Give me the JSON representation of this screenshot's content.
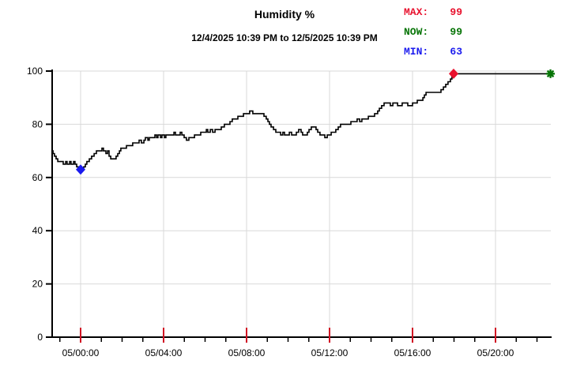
{
  "title": "Humidity %",
  "subtitle": "12/4/2025 10:39 PM to 12/5/2025 10:39 PM",
  "legend": {
    "max_label": "MAX:",
    "max_value": "99",
    "max_color": "#e8112d",
    "now_label": "NOW:",
    "now_value": "99",
    "now_color": "#067406",
    "min_label": "MIN:",
    "min_value": "63",
    "min_color": "#1a1aee"
  },
  "chart_data": {
    "type": "line",
    "title": "Humidity %",
    "subtitle": "12/4/2025 10:39 PM to 12/5/2025 10:39 PM",
    "xlabel": "",
    "ylabel": "",
    "x_unit": "hours relative to 12/5 00:00",
    "xlim": [
      -1.37,
      22.65
    ],
    "ylim": [
      0,
      100
    ],
    "y_ticks": [
      0,
      20,
      40,
      60,
      80,
      100
    ],
    "x_major_ticks": [
      {
        "t": 0,
        "label": "05/00:00"
      },
      {
        "t": 4,
        "label": "05/04:00"
      },
      {
        "t": 8,
        "label": "05/08:00"
      },
      {
        "t": 12,
        "label": "05/12:00"
      },
      {
        "t": 16,
        "label": "05/16:00"
      },
      {
        "t": 20,
        "label": "05/20:00"
      }
    ],
    "x_minor_tick_interval": 1,
    "grid": true,
    "colors": {
      "line": "#000000",
      "grid": "#d9d9d9",
      "axis": "#000000",
      "major_tick": "#d11124",
      "min_marker": "#1a1aee",
      "max_marker": "#e8112d",
      "now_marker": "#067406"
    },
    "markers": [
      {
        "name": "min-marker",
        "shape": "diamond",
        "t": 0.0,
        "v": 63
      },
      {
        "name": "max-marker",
        "shape": "diamond",
        "t": 17.98,
        "v": 99
      },
      {
        "name": "now-marker",
        "shape": "asterisk",
        "t": 22.65,
        "v": 99
      }
    ],
    "series": [
      {
        "name": "Humidity",
        "step": true,
        "points": [
          [
            -1.37,
            70
          ],
          [
            -1.33,
            69
          ],
          [
            -1.26,
            68
          ],
          [
            -1.18,
            67
          ],
          [
            -1.1,
            66
          ],
          [
            -0.91,
            66
          ],
          [
            -0.84,
            65
          ],
          [
            -0.72,
            66
          ],
          [
            -0.65,
            65
          ],
          [
            -0.53,
            66
          ],
          [
            -0.46,
            65
          ],
          [
            -0.34,
            66
          ],
          [
            -0.27,
            65
          ],
          [
            -0.19,
            64
          ],
          [
            -0.11,
            63
          ],
          [
            0.08,
            63
          ],
          [
            0.15,
            64
          ],
          [
            0.23,
            65
          ],
          [
            0.3,
            66
          ],
          [
            0.42,
            67
          ],
          [
            0.53,
            68
          ],
          [
            0.65,
            69
          ],
          [
            0.76,
            70
          ],
          [
            0.95,
            70
          ],
          [
            1.03,
            71
          ],
          [
            1.1,
            70
          ],
          [
            1.22,
            69
          ],
          [
            1.3,
            70
          ],
          [
            1.37,
            68
          ],
          [
            1.45,
            67
          ],
          [
            1.6,
            67
          ],
          [
            1.71,
            68
          ],
          [
            1.79,
            69
          ],
          [
            1.87,
            70
          ],
          [
            1.94,
            71
          ],
          [
            2.1,
            71
          ],
          [
            2.21,
            72
          ],
          [
            2.4,
            72
          ],
          [
            2.51,
            73
          ],
          [
            2.7,
            73
          ],
          [
            2.82,
            74
          ],
          [
            2.93,
            73
          ],
          [
            3.05,
            74
          ],
          [
            3.12,
            75
          ],
          [
            3.24,
            74
          ],
          [
            3.31,
            75
          ],
          [
            3.43,
            75
          ],
          [
            3.58,
            76
          ],
          [
            3.66,
            75
          ],
          [
            3.73,
            76
          ],
          [
            3.85,
            75
          ],
          [
            3.92,
            76
          ],
          [
            4.04,
            75
          ],
          [
            4.11,
            76
          ],
          [
            4.27,
            76
          ],
          [
            4.38,
            76
          ],
          [
            4.5,
            77
          ],
          [
            4.57,
            76
          ],
          [
            4.69,
            76
          ],
          [
            4.8,
            77
          ],
          [
            4.88,
            76
          ],
          [
            4.99,
            75
          ],
          [
            5.1,
            74
          ],
          [
            5.22,
            75
          ],
          [
            5.37,
            75
          ],
          [
            5.49,
            76
          ],
          [
            5.64,
            76
          ],
          [
            5.79,
            77
          ],
          [
            5.94,
            77
          ],
          [
            6.06,
            78
          ],
          [
            6.13,
            77
          ],
          [
            6.25,
            78
          ],
          [
            6.36,
            77
          ],
          [
            6.48,
            78
          ],
          [
            6.63,
            78
          ],
          [
            6.78,
            79
          ],
          [
            6.93,
            80
          ],
          [
            7.09,
            80
          ],
          [
            7.2,
            81
          ],
          [
            7.31,
            82
          ],
          [
            7.47,
            82
          ],
          [
            7.58,
            83
          ],
          [
            7.73,
            83
          ],
          [
            7.85,
            84
          ],
          [
            8.0,
            84
          ],
          [
            8.15,
            85
          ],
          [
            8.3,
            84
          ],
          [
            8.5,
            84
          ],
          [
            8.69,
            84
          ],
          [
            8.84,
            83
          ],
          [
            8.95,
            82
          ],
          [
            9.03,
            81
          ],
          [
            9.1,
            80
          ],
          [
            9.18,
            79
          ],
          [
            9.3,
            78
          ],
          [
            9.41,
            77
          ],
          [
            9.52,
            77
          ],
          [
            9.64,
            76
          ],
          [
            9.75,
            77
          ],
          [
            9.83,
            76
          ],
          [
            9.94,
            76
          ],
          [
            10.06,
            77
          ],
          [
            10.17,
            76
          ],
          [
            10.29,
            76
          ],
          [
            10.4,
            77
          ],
          [
            10.51,
            78
          ],
          [
            10.63,
            77
          ],
          [
            10.7,
            76
          ],
          [
            10.82,
            76
          ],
          [
            10.93,
            77
          ],
          [
            11.01,
            78
          ],
          [
            11.12,
            79
          ],
          [
            11.24,
            79
          ],
          [
            11.35,
            78
          ],
          [
            11.43,
            77
          ],
          [
            11.54,
            76
          ],
          [
            11.66,
            76
          ],
          [
            11.77,
            75
          ],
          [
            11.89,
            76
          ],
          [
            12.0,
            76
          ],
          [
            12.08,
            77
          ],
          [
            12.19,
            77
          ],
          [
            12.3,
            78
          ],
          [
            12.42,
            79
          ],
          [
            12.53,
            80
          ],
          [
            12.72,
            80
          ],
          [
            12.88,
            80
          ],
          [
            13.03,
            81
          ],
          [
            13.18,
            81
          ],
          [
            13.33,
            82
          ],
          [
            13.45,
            81
          ],
          [
            13.56,
            82
          ],
          [
            13.71,
            82
          ],
          [
            13.87,
            83
          ],
          [
            14.02,
            83
          ],
          [
            14.17,
            84
          ],
          [
            14.32,
            85
          ],
          [
            14.4,
            86
          ],
          [
            14.51,
            87
          ],
          [
            14.63,
            88
          ],
          [
            14.78,
            88
          ],
          [
            14.93,
            87
          ],
          [
            15.05,
            88
          ],
          [
            15.16,
            88
          ],
          [
            15.28,
            87
          ],
          [
            15.39,
            87
          ],
          [
            15.5,
            88
          ],
          [
            15.66,
            88
          ],
          [
            15.77,
            87
          ],
          [
            15.89,
            87
          ],
          [
            16.0,
            88
          ],
          [
            16.11,
            88
          ],
          [
            16.23,
            89
          ],
          [
            16.38,
            89
          ],
          [
            16.5,
            90
          ],
          [
            16.57,
            91
          ],
          [
            16.65,
            92
          ],
          [
            16.88,
            92
          ],
          [
            17.07,
            92
          ],
          [
            17.3,
            92
          ],
          [
            17.37,
            93
          ],
          [
            17.49,
            94
          ],
          [
            17.6,
            95
          ],
          [
            17.71,
            96
          ],
          [
            17.83,
            97
          ],
          [
            17.9,
            98
          ],
          [
            17.98,
            99
          ],
          [
            18.21,
            99
          ],
          [
            18.97,
            99
          ],
          [
            20.88,
            99
          ],
          [
            22.65,
            99
          ]
        ]
      }
    ]
  }
}
